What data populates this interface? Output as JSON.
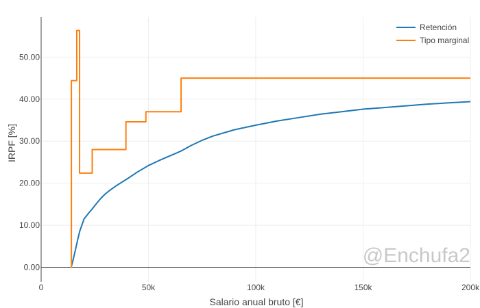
{
  "colors": {
    "retencion": "#1f77b4",
    "tipo_marginal": "#ff7f0e",
    "grid": "#eeeeee",
    "axis": "#444444",
    "watermark": "#c8c8c8"
  },
  "watermark": "@Enchufa2",
  "chart_data": {
    "type": "line",
    "title": "",
    "xlabel": "Salario anual bruto [€]",
    "ylabel": "IRPF [%]",
    "xlim": [
      0,
      200000
    ],
    "ylim": [
      -3.5,
      59.5
    ],
    "grid": true,
    "legend_position": "top-right",
    "x_ticks": [
      {
        "value": 0,
        "label": "0"
      },
      {
        "value": 50000,
        "label": "50k"
      },
      {
        "value": 100000,
        "label": "100k"
      },
      {
        "value": 150000,
        "label": "150k"
      },
      {
        "value": 200000,
        "label": "200k"
      }
    ],
    "y_ticks": [
      {
        "value": 0,
        "label": "0.00"
      },
      {
        "value": 10,
        "label": "10.00"
      },
      {
        "value": 20,
        "label": "20.00"
      },
      {
        "value": 30,
        "label": "30.00"
      },
      {
        "value": 40,
        "label": "40.00"
      },
      {
        "value": 50,
        "label": "50.00"
      }
    ],
    "series": [
      {
        "name": "Retención",
        "shape": "linear",
        "x": [
          14000,
          15000,
          16000,
          17000,
          18000,
          20000,
          22000,
          24000,
          26000,
          28000,
          30000,
          32000,
          35000,
          40000,
          45000,
          50000,
          55000,
          60000,
          65000,
          70000,
          75000,
          80000,
          90000,
          100000,
          110000,
          120000,
          130000,
          140000,
          150000,
          160000,
          170000,
          180000,
          190000,
          200000
        ],
        "y": [
          0,
          2,
          4.2,
          6.5,
          8.6,
          11.5,
          12.8,
          14.0,
          15.3,
          16.5,
          17.5,
          18.3,
          19.4,
          21.0,
          22.7,
          24.2,
          25.4,
          26.5,
          27.6,
          29.0,
          30.2,
          31.2,
          32.7,
          33.8,
          34.8,
          35.6,
          36.4,
          37.0,
          37.6,
          38.0,
          38.4,
          38.8,
          39.1,
          39.4
        ]
      },
      {
        "name": "Tipo marginal",
        "shape": "hv",
        "x": [
          13800,
          14100,
          16600,
          17900,
          23800,
          39500,
          48800,
          65200,
          200000
        ],
        "y": [
          0,
          44.4,
          56.3,
          22.4,
          28.0,
          34.6,
          37.0,
          45.0,
          45.0
        ]
      }
    ]
  }
}
